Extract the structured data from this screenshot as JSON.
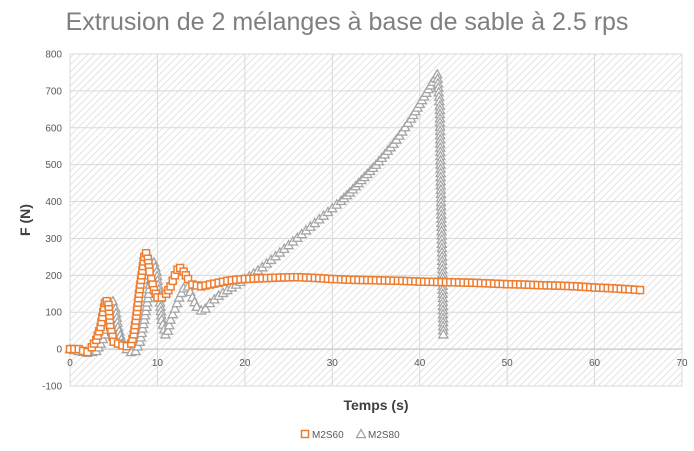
{
  "chart_data": {
    "type": "scatter",
    "title": "Extrusion de 2 mélanges à base de sable à 2.5 rps",
    "xlabel": "Temps (s)",
    "ylabel": "F (N)",
    "xlim": [
      0,
      70
    ],
    "ylim": [
      -100,
      800
    ],
    "xticks": [
      0,
      10,
      20,
      30,
      40,
      50,
      60,
      70
    ],
    "yticks": [
      -100,
      0,
      100,
      200,
      300,
      400,
      500,
      600,
      700,
      800
    ],
    "grid": true,
    "legend_position": "bottom",
    "series": [
      {
        "name": "M2S60",
        "marker": "square",
        "color": "#ed7d31",
        "points": [
          [
            0,
            0
          ],
          [
            0.5,
            0
          ],
          [
            1,
            0
          ],
          [
            1.5,
            -5
          ],
          [
            2,
            -8
          ],
          [
            2.5,
            5
          ],
          [
            3,
            25
          ],
          [
            3.5,
            60
          ],
          [
            3.8,
            100
          ],
          [
            4,
            125
          ],
          [
            4.2,
            130
          ],
          [
            4.4,
            120
          ],
          [
            4.6,
            60
          ],
          [
            5,
            20
          ],
          [
            5.5,
            15
          ],
          [
            6,
            10
          ],
          [
            6.5,
            8
          ],
          [
            7,
            15
          ],
          [
            7.3,
            40
          ],
          [
            7.6,
            90
          ],
          [
            7.9,
            150
          ],
          [
            8.2,
            200
          ],
          [
            8.5,
            250
          ],
          [
            8.7,
            260
          ],
          [
            8.9,
            245
          ],
          [
            9.1,
            210
          ],
          [
            9.3,
            190
          ],
          [
            9.6,
            160
          ],
          [
            10,
            140
          ],
          [
            10.5,
            140
          ],
          [
            11,
            150
          ],
          [
            11.5,
            170
          ],
          [
            12,
            200
          ],
          [
            12.3,
            215
          ],
          [
            12.6,
            220
          ],
          [
            13,
            210
          ],
          [
            13.5,
            190
          ],
          [
            14,
            175
          ],
          [
            15,
            170
          ],
          [
            16,
            175
          ],
          [
            17,
            180
          ],
          [
            18,
            185
          ],
          [
            19,
            188
          ],
          [
            20,
            190
          ],
          [
            22,
            192
          ],
          [
            24,
            194
          ],
          [
            26,
            195
          ],
          [
            28,
            193
          ],
          [
            30,
            190
          ],
          [
            32,
            188
          ],
          [
            34,
            187
          ],
          [
            36,
            186
          ],
          [
            38,
            185
          ],
          [
            40,
            183
          ],
          [
            42,
            182
          ],
          [
            44,
            181
          ],
          [
            46,
            180
          ],
          [
            48,
            178
          ],
          [
            50,
            176
          ],
          [
            52,
            175
          ],
          [
            54,
            173
          ],
          [
            56,
            172
          ],
          [
            58,
            170
          ],
          [
            60,
            167
          ],
          [
            62,
            165
          ],
          [
            64,
            162
          ],
          [
            65.2,
            160
          ]
        ]
      },
      {
        "name": "M2S80",
        "marker": "triangle",
        "color": "#a5a5a5",
        "points": [
          [
            0,
            0
          ],
          [
            1,
            -5
          ],
          [
            2,
            -10
          ],
          [
            3,
            -5
          ],
          [
            3.5,
            15
          ],
          [
            4,
            40
          ],
          [
            4.3,
            80
          ],
          [
            4.6,
            115
          ],
          [
            4.9,
            130
          ],
          [
            5.2,
            110
          ],
          [
            5.5,
            60
          ],
          [
            6,
            15
          ],
          [
            6.5,
            0
          ],
          [
            7,
            -8
          ],
          [
            7.5,
            -5
          ],
          [
            8,
            20
          ],
          [
            8.5,
            80
          ],
          [
            9,
            150
          ],
          [
            9.3,
            200
          ],
          [
            9.6,
            235
          ],
          [
            9.9,
            210
          ],
          [
            10.2,
            150
          ],
          [
            10.5,
            80
          ],
          [
            10.9,
            40
          ],
          [
            11.2,
            50
          ],
          [
            11.5,
            80
          ],
          [
            12,
            110
          ],
          [
            12.5,
            140
          ],
          [
            13,
            165
          ],
          [
            13.5,
            170
          ],
          [
            14,
            140
          ],
          [
            14.5,
            115
          ],
          [
            15,
            105
          ],
          [
            15.5,
            110
          ],
          [
            16,
            125
          ],
          [
            17,
            145
          ],
          [
            18,
            160
          ],
          [
            19,
            175
          ],
          [
            20,
            190
          ],
          [
            21,
            205
          ],
          [
            22,
            222
          ],
          [
            23,
            242
          ],
          [
            24,
            262
          ],
          [
            25,
            282
          ],
          [
            26,
            302
          ],
          [
            27,
            322
          ],
          [
            28,
            342
          ],
          [
            29,
            362
          ],
          [
            30,
            382
          ],
          [
            31,
            402
          ],
          [
            32,
            425
          ],
          [
            33,
            450
          ],
          [
            34,
            475
          ],
          [
            35,
            500
          ],
          [
            36,
            528
          ],
          [
            37,
            557
          ],
          [
            38,
            590
          ],
          [
            39,
            625
          ],
          [
            40,
            665
          ],
          [
            41,
            705
          ],
          [
            42,
            745
          ],
          [
            42.3,
            660
          ],
          [
            42.4,
            455
          ],
          [
            42.5,
            320
          ],
          [
            42.6,
            205
          ],
          [
            42.7,
            40
          ]
        ]
      }
    ]
  }
}
